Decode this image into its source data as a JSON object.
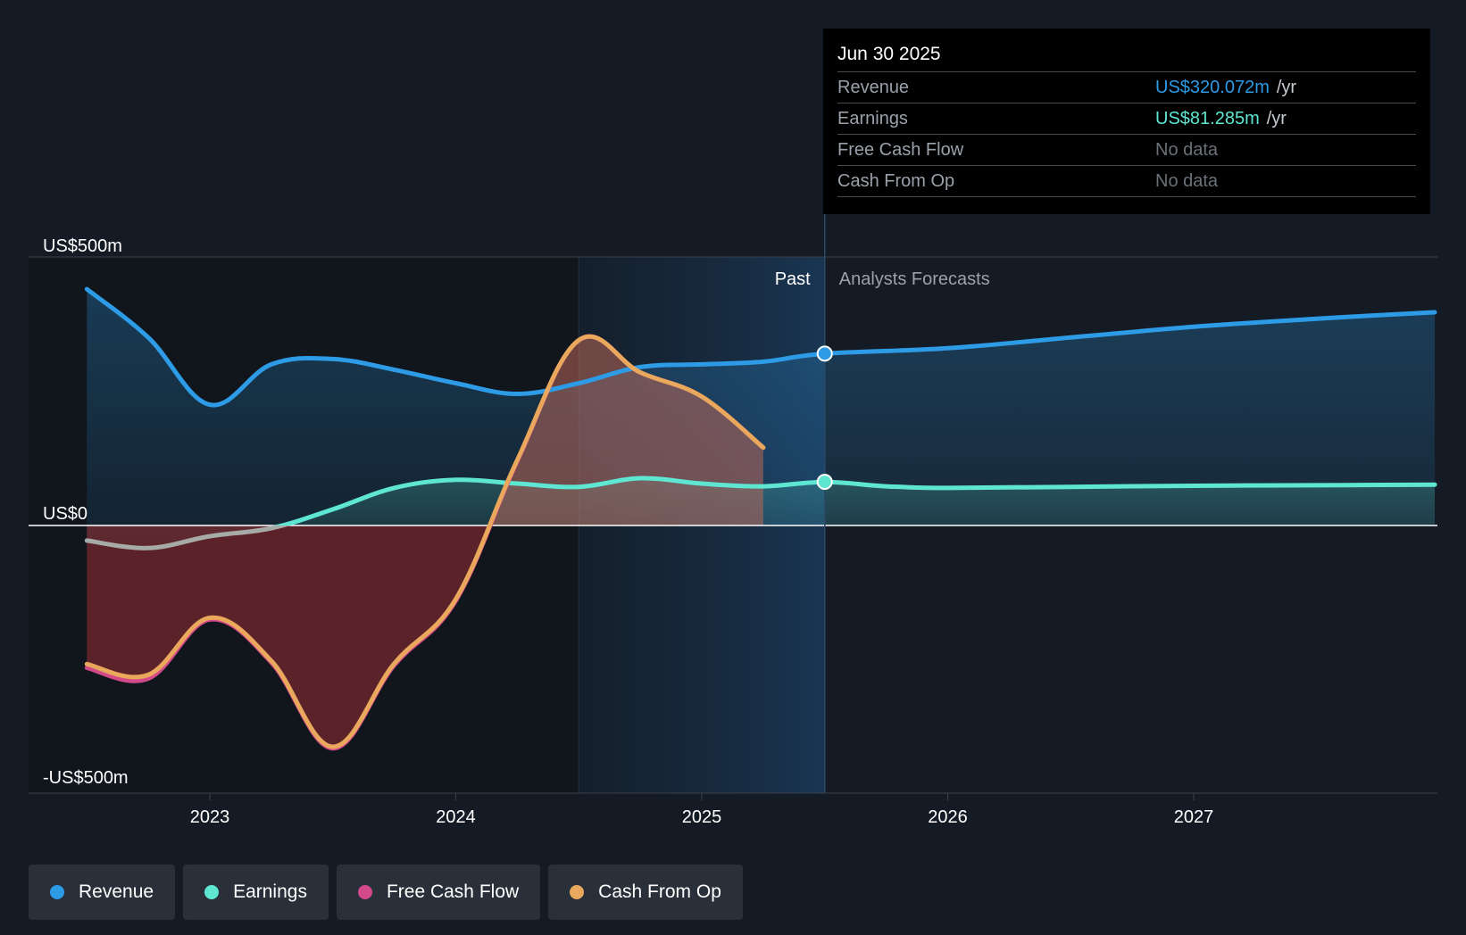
{
  "chart_data": {
    "type": "line",
    "title": "",
    "ylabel": "",
    "xlabel": "",
    "y_tick_labels": [
      "US$500m",
      "US$0",
      "-US$500m"
    ],
    "ylim": [
      -500,
      500
    ],
    "x_ticks": [
      2023,
      2024,
      2025,
      2026,
      2027
    ],
    "xlim": [
      2022.26,
      2027.98
    ],
    "past_label": "Past",
    "forecast_label": "Analysts Forecasts",
    "divider_x": 2025.5,
    "shaded_start_x": 2024.5,
    "colors": {
      "revenue": "#2d9be6",
      "earnings": "#5ee6d2",
      "free_cash_flow": "#d4498a",
      "cash_from_op": "#e9a85c"
    },
    "series": [
      {
        "name": "Revenue",
        "key": "revenue",
        "x": [
          2022.5,
          2022.75,
          2023.0,
          2023.25,
          2023.5,
          2023.75,
          2024.0,
          2024.25,
          2024.5,
          2024.75,
          2025.0,
          2025.25,
          2025.5,
          2026.0,
          2026.5,
          2027.0,
          2027.5,
          2027.98
        ],
        "values": [
          440,
          350,
          225,
          300,
          310,
          290,
          265,
          245,
          265,
          295,
          300,
          305,
          320,
          330,
          350,
          370,
          385,
          397
        ]
      },
      {
        "name": "Earnings",
        "key": "earnings",
        "x": [
          2022.5,
          2022.75,
          2023.0,
          2023.25,
          2023.5,
          2023.75,
          2024.0,
          2024.25,
          2024.5,
          2024.75,
          2025.0,
          2025.25,
          2025.5,
          2025.75,
          2026.0,
          2026.5,
          2027.0,
          2027.5,
          2027.98
        ],
        "values": [
          -28,
          -42,
          -20,
          -5,
          30,
          70,
          85,
          78,
          72,
          88,
          78,
          73,
          81,
          73,
          70,
          72,
          74,
          75,
          76
        ]
      },
      {
        "name": "Free Cash Flow",
        "key": "free_cash_flow",
        "x": [
          2022.5,
          2022.75,
          2023.0,
          2023.25,
          2023.5,
          2023.75,
          2024.0,
          2024.25,
          2024.5,
          2024.75,
          2025.0,
          2025.25
        ],
        "values": [
          -265,
          -285,
          -175,
          -255,
          -415,
          -260,
          -140,
          120,
          345,
          285,
          240,
          145
        ]
      },
      {
        "name": "Cash From Op",
        "key": "cash_from_op",
        "x": [
          2022.5,
          2022.75,
          2023.0,
          2023.25,
          2023.5,
          2023.75,
          2024.0,
          2024.25,
          2024.5,
          2024.75,
          2025.0,
          2025.25
        ],
        "values": [
          -258,
          -278,
          -172,
          -252,
          -412,
          -257,
          -137,
          122,
          345,
          285,
          240,
          145
        ]
      }
    ],
    "highlight_points": [
      {
        "series": "revenue",
        "x": 2025.5,
        "value": 320.072
      },
      {
        "series": "earnings",
        "x": 2025.5,
        "value": 81.285
      }
    ]
  },
  "tooltip": {
    "date": "Jun 30 2025",
    "rows": [
      {
        "label": "Revenue",
        "value": "US$320.072m",
        "unit": "/yr"
      },
      {
        "label": "Earnings",
        "value": "US$81.285m",
        "unit": "/yr"
      },
      {
        "label": "Free Cash Flow",
        "value": "No data",
        "unit": ""
      },
      {
        "label": "Cash From Op",
        "value": "No data",
        "unit": ""
      }
    ]
  },
  "legend": {
    "items": [
      {
        "label": "Revenue",
        "color": "#2d9be6"
      },
      {
        "label": "Earnings",
        "color": "#5ee6d2"
      },
      {
        "label": "Free Cash Flow",
        "color": "#d4498a"
      },
      {
        "label": "Cash From Op",
        "color": "#e9a85c"
      }
    ]
  }
}
